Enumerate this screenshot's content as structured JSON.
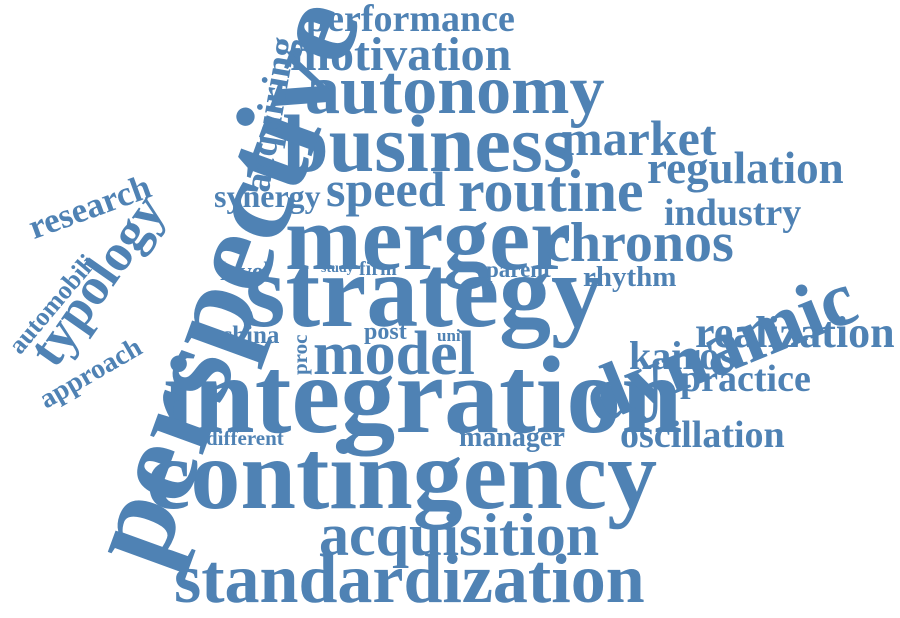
{
  "theme": {
    "word_color": "#4f82b4",
    "background": "#ffffff"
  },
  "words": [
    {
      "text": "performance",
      "key": "performance"
    },
    {
      "text": "motivation",
      "key": "motivation"
    },
    {
      "text": "autonomy",
      "key": "autonomy"
    },
    {
      "text": "business",
      "key": "business"
    },
    {
      "text": "market",
      "key": "market"
    },
    {
      "text": "regulation",
      "key": "regulation"
    },
    {
      "text": "speed",
      "key": "speed"
    },
    {
      "text": "routine",
      "key": "routine"
    },
    {
      "text": "industry",
      "key": "industry"
    },
    {
      "text": "synergy",
      "key": "synergy"
    },
    {
      "text": "research",
      "key": "research"
    },
    {
      "text": "merger",
      "key": "merger"
    },
    {
      "text": "chronos",
      "key": "chronos"
    },
    {
      "text": "level",
      "key": "level"
    },
    {
      "text": "study",
      "key": "study"
    },
    {
      "text": "firm",
      "key": "firm"
    },
    {
      "text": "parent",
      "key": "parent"
    },
    {
      "text": "rhythm",
      "key": "rhythm"
    },
    {
      "text": "strategy",
      "key": "strategy"
    },
    {
      "text": "dynamic",
      "key": "dynamic"
    },
    {
      "text": "realization",
      "key": "realization"
    },
    {
      "text": "china",
      "key": "china"
    },
    {
      "text": "post",
      "key": "post"
    },
    {
      "text": "unit",
      "key": "unit"
    },
    {
      "text": "proc",
      "key": "proc"
    },
    {
      "text": "model",
      "key": "model"
    },
    {
      "text": "kairos",
      "key": "kairos"
    },
    {
      "text": "practice",
      "key": "practice"
    },
    {
      "text": "integration",
      "key": "integration"
    },
    {
      "text": "different",
      "key": "different"
    },
    {
      "text": "manager",
      "key": "manager"
    },
    {
      "text": "oscillation",
      "key": "oscillation"
    },
    {
      "text": "contingency",
      "key": "contingency"
    },
    {
      "text": "acquisition",
      "key": "acquisition"
    },
    {
      "text": "standardization",
      "key": "standardization"
    },
    {
      "text": "perspective",
      "key": "perspective"
    },
    {
      "text": "acquiring",
      "key": "acquiring"
    },
    {
      "text": "typology",
      "key": "typology"
    },
    {
      "text": "automobili",
      "key": "automobili"
    },
    {
      "text": "approach",
      "key": "approach"
    }
  ]
}
